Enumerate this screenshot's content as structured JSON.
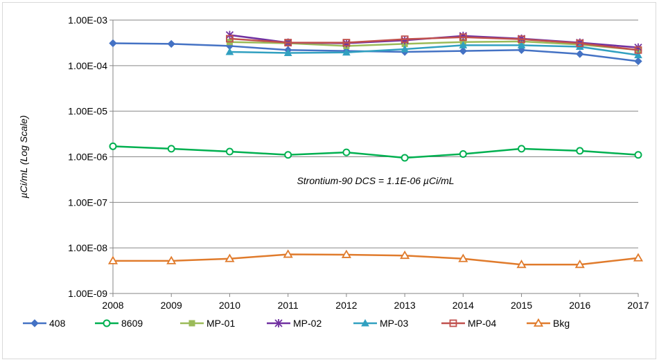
{
  "chart_data": {
    "type": "line",
    "title": "",
    "xlabel": "",
    "ylabel": "µCi/mL  (Log Scale)",
    "y_scale": "log",
    "ylim": [
      1e-09,
      0.001
    ],
    "y_ticks": [
      1e-09,
      1e-08,
      1e-07,
      1e-06,
      1e-05,
      0.0001,
      0.001
    ],
    "y_tick_labels": [
      "1.00E-09",
      "1.00E-08",
      "1.00E-07",
      "1.00E-06",
      "1.00E-05",
      "1.00E-04",
      "1.00E-03"
    ],
    "x": [
      2008,
      2009,
      2010,
      2011,
      2012,
      2013,
      2014,
      2015,
      2016,
      2017
    ],
    "x_tick_labels": [
      "2008",
      "2009",
      "2010",
      "2011",
      "2012",
      "2013",
      "2014",
      "2015",
      "2016",
      "2017"
    ],
    "grid": "horizontal",
    "legend_position": "bottom",
    "annotation": "Strontium-90 DCS = 1.1E-06 µCi/mL",
    "series": [
      {
        "name": "408",
        "color": "#4472c4",
        "marker": "diamond",
        "values": [
          0.00031,
          0.0003,
          0.00027,
          0.00022,
          0.00021,
          0.0002,
          0.00021,
          0.00022,
          0.00018,
          0.000125
        ]
      },
      {
        "name": "8609",
        "color": "#00b050",
        "marker": "circle",
        "values": [
          1.7e-06,
          1.5e-06,
          1.3e-06,
          1.1e-06,
          1.25e-06,
          9.5e-07,
          1.15e-06,
          1.5e-06,
          1.35e-06,
          1.1e-06
        ]
      },
      {
        "name": "MP-01",
        "color": "#9bbb59",
        "marker": "square",
        "values": [
          null,
          null,
          0.00033,
          0.00031,
          0.00027,
          0.0003,
          0.00033,
          0.00034,
          0.00029,
          0.00022
        ]
      },
      {
        "name": "MP-02",
        "color": "#7030a0",
        "marker": "star",
        "values": [
          null,
          null,
          0.00047,
          0.00032,
          0.00031,
          0.00036,
          0.00045,
          0.00039,
          0.00032,
          0.00025
        ]
      },
      {
        "name": "MP-03",
        "color": "#31a0c0",
        "marker": "triangle",
        "values": [
          null,
          null,
          0.0002,
          0.00019,
          0.000195,
          0.00023,
          0.00028,
          0.00028,
          0.00026,
          0.00017
        ]
      },
      {
        "name": "MP-04",
        "color": "#c0504d",
        "marker": "square-open",
        "values": [
          null,
          null,
          0.00039,
          0.00032,
          0.00032,
          0.00038,
          0.00042,
          0.00038,
          0.00031,
          0.00022
        ]
      },
      {
        "name": "Bkg",
        "color": "#e07b2c",
        "marker": "triangle-open",
        "values": [
          5.2e-09,
          5.2e-09,
          5.8e-09,
          7.2e-09,
          7.1e-09,
          6.8e-09,
          5.8e-09,
          4.3e-09,
          4.3e-09,
          6e-09
        ]
      }
    ]
  }
}
